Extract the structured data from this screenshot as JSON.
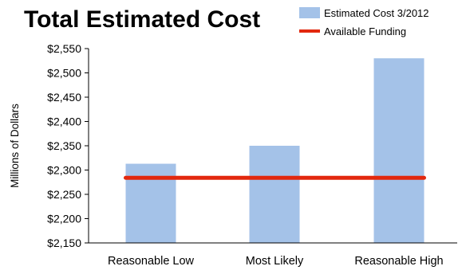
{
  "chart_data": {
    "type": "bar",
    "title": "Total Estimated Cost",
    "ylabel": "Millions of Dollars",
    "xlabel": "",
    "categories": [
      "Reasonable Low",
      "Most Likely",
      "Reasonable High"
    ],
    "series": [
      {
        "name": "Estimated Cost 3/2012",
        "type": "bar",
        "color": "#a4c2e8",
        "values": [
          2313,
          2350,
          2530
        ]
      },
      {
        "name": "Available Funding",
        "type": "line",
        "color": "#e2280e",
        "values": [
          2284,
          2284,
          2284
        ]
      }
    ],
    "ylim": [
      2150,
      2550
    ],
    "yticks": [
      2150,
      2200,
      2250,
      2300,
      2350,
      2400,
      2450,
      2500,
      2550
    ],
    "ytick_labels": [
      "$2,150",
      "$2,200",
      "$2,250",
      "$2,300",
      "$2,350",
      "$2,400",
      "$2,450",
      "$2,500",
      "$2,550"
    ],
    "grid": false,
    "legend_position": "top-right"
  }
}
